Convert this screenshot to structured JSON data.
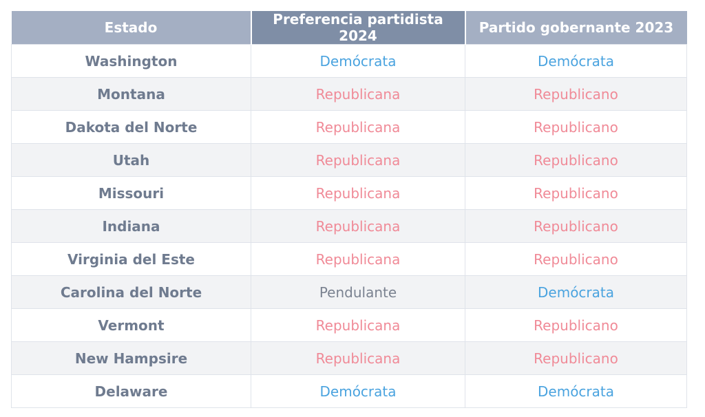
{
  "table": {
    "headers": [
      "Estado",
      "Preferencia partidista 2024",
      "Partido gobernante 2023"
    ],
    "rows": [
      {
        "state": "Washington",
        "pref2024": "Demócrata",
        "gov2023": "Demócrata"
      },
      {
        "state": "Montana",
        "pref2024": "Republicana",
        "gov2023": "Republicano"
      },
      {
        "state": "Dakota del Norte",
        "pref2024": "Republicana",
        "gov2023": "Republicano"
      },
      {
        "state": "Utah",
        "pref2024": "Republicana",
        "gov2023": "Republicano"
      },
      {
        "state": "Missouri",
        "pref2024": "Republicana",
        "gov2023": "Republicano"
      },
      {
        "state": "Indiana",
        "pref2024": "Republicana",
        "gov2023": "Republicano"
      },
      {
        "state": "Virginia del Este",
        "pref2024": "Republicana",
        "gov2023": "Republicano"
      },
      {
        "state": "Carolina del Norte",
        "pref2024": "Pendulante",
        "gov2023": "Demócrata"
      },
      {
        "state": "Vermont",
        "pref2024": "Republicana",
        "gov2023": "Republicano"
      },
      {
        "state": "New Hampsire",
        "pref2024": "Republicana",
        "gov2023": "Republicano"
      },
      {
        "state": "Delaware",
        "pref2024": "Demócrata",
        "gov2023": "Demócrata"
      }
    ]
  },
  "colors": {
    "democrat": "#4aa3df",
    "republican": "#f08a97",
    "swing": "#7a8290",
    "header_light": "#a4afc3",
    "header_dark": "#7f8ea6"
  }
}
